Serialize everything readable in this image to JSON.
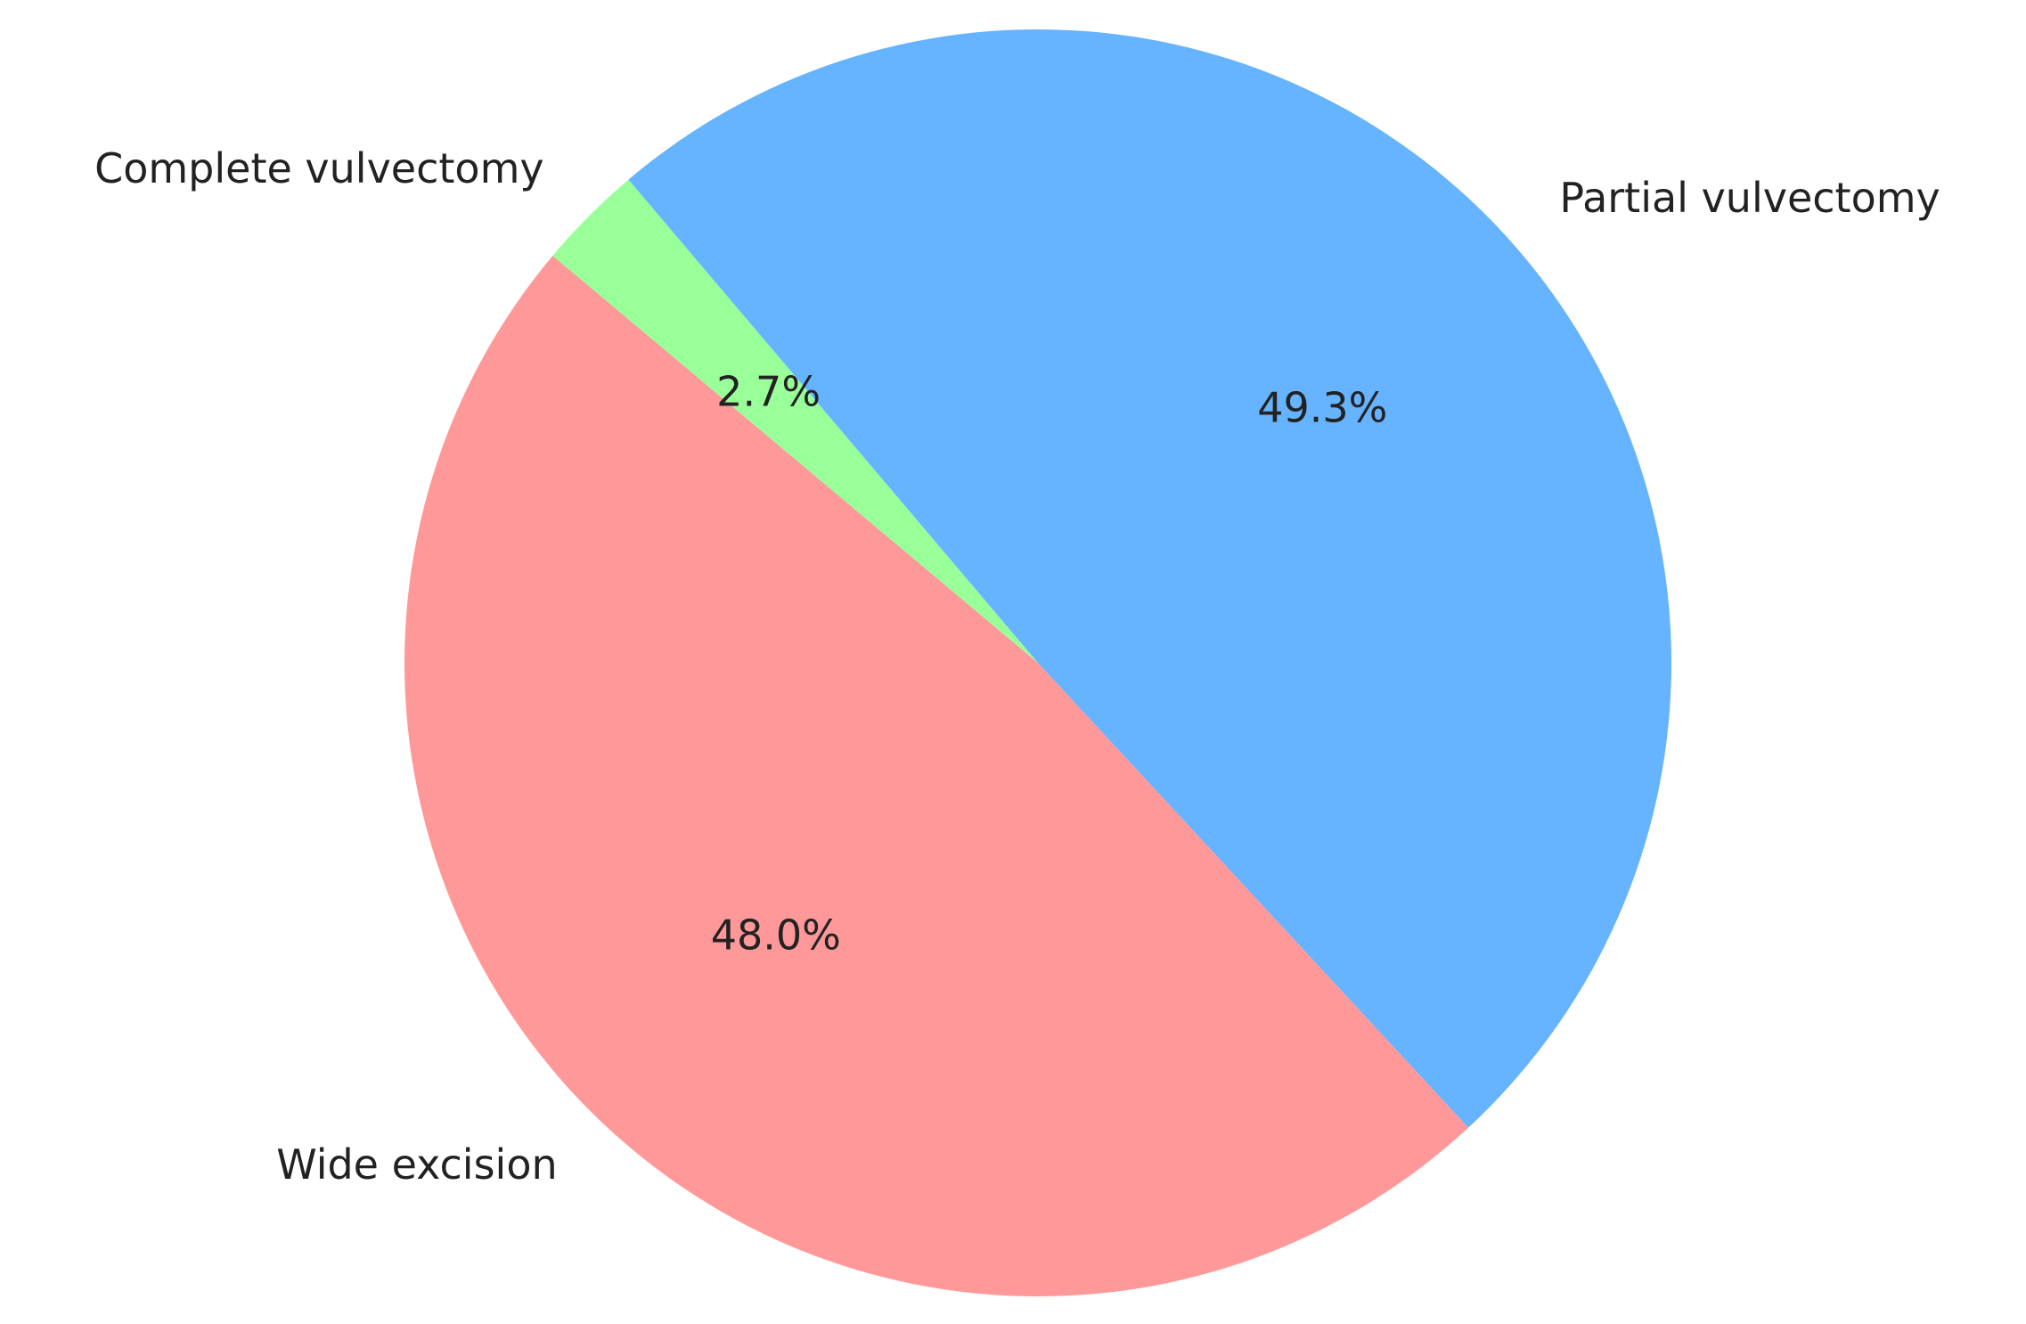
{
  "chart_data": {
    "type": "pie",
    "categories": [
      "Wide excision",
      "Partial vulvectomy",
      "Complete vulvectomy"
    ],
    "values": [
      48.0,
      49.3,
      2.7
    ],
    "value_labels": [
      "48.0%",
      "49.3%",
      "2.7%"
    ],
    "colors": [
      "#ff9999",
      "#66b3ff",
      "#99ff99"
    ],
    "startangle": 140
  }
}
